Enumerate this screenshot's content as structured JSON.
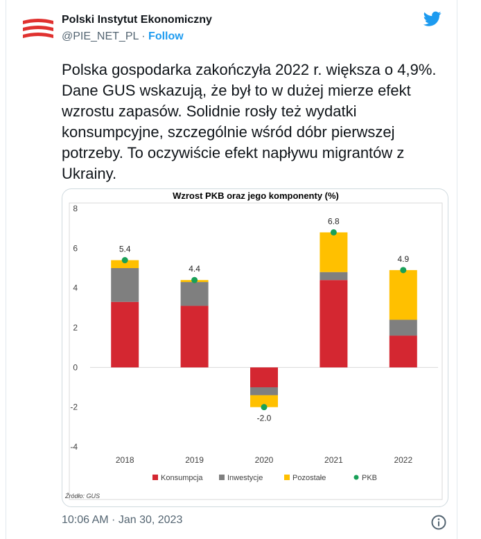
{
  "tweet": {
    "author_name": "Polski Instytut Ekonomiczny",
    "handle": "@PIE_NET_PL",
    "separator": "·",
    "follow_label": "Follow",
    "text": "Polska gospodarka zakończyła 2022 r. większa o 4,9%. Dane GUS wskazują, że był to w dużej mierze efekt wzrostu zapasów. Solidnie rosły też wydatki konsumpcyjne, szczególnie wśród dóbr pierwszej potrzeby. To oczywiście efekt napływu migrantów z Ukrainy.",
    "timestamp": "10:06 AM · Jan 30, 2023"
  },
  "icons": {
    "avatar": "pie-logo-icon",
    "twitter": "twitter-bird-icon",
    "info": "info-icon"
  },
  "colors": {
    "twitter_blue": "#1d9bf0",
    "logo_red": "#e0312f",
    "konsumpcja": "#d42731",
    "inwestycje": "#7f7f7f",
    "pozostale": "#ffc000",
    "pkb": "#18a058"
  },
  "chart_data": {
    "type": "bar",
    "stacked": true,
    "title": "Wzrost PKB oraz jego komponenty (%)",
    "categories": [
      "2018",
      "2019",
      "2020",
      "2021",
      "2022"
    ],
    "series": [
      {
        "name": "Konsumpcja",
        "color": "#d42731",
        "values": [
          3.3,
          3.1,
          -1.0,
          4.4,
          1.6
        ]
      },
      {
        "name": "Inwestycje",
        "color": "#7f7f7f",
        "values": [
          1.7,
          1.2,
          -0.4,
          0.4,
          0.8
        ]
      },
      {
        "name": "Pozostałe",
        "color": "#ffc000",
        "values": [
          0.4,
          0.1,
          -0.6,
          2.0,
          2.5
        ]
      }
    ],
    "marker_series": {
      "name": "PKB",
      "color": "#18a058",
      "values": [
        5.4,
        4.4,
        -2.0,
        6.8,
        4.9
      ]
    },
    "data_labels": [
      "5.4",
      "4.4",
      "-2.0",
      "6.8",
      "4.9"
    ],
    "yticks": [
      "8",
      "6",
      "4",
      "2",
      "0",
      "-2",
      "-4"
    ],
    "ylim": [
      -4,
      8
    ],
    "grid": false,
    "legend": "bottom",
    "source": "Źródło: GUS"
  }
}
